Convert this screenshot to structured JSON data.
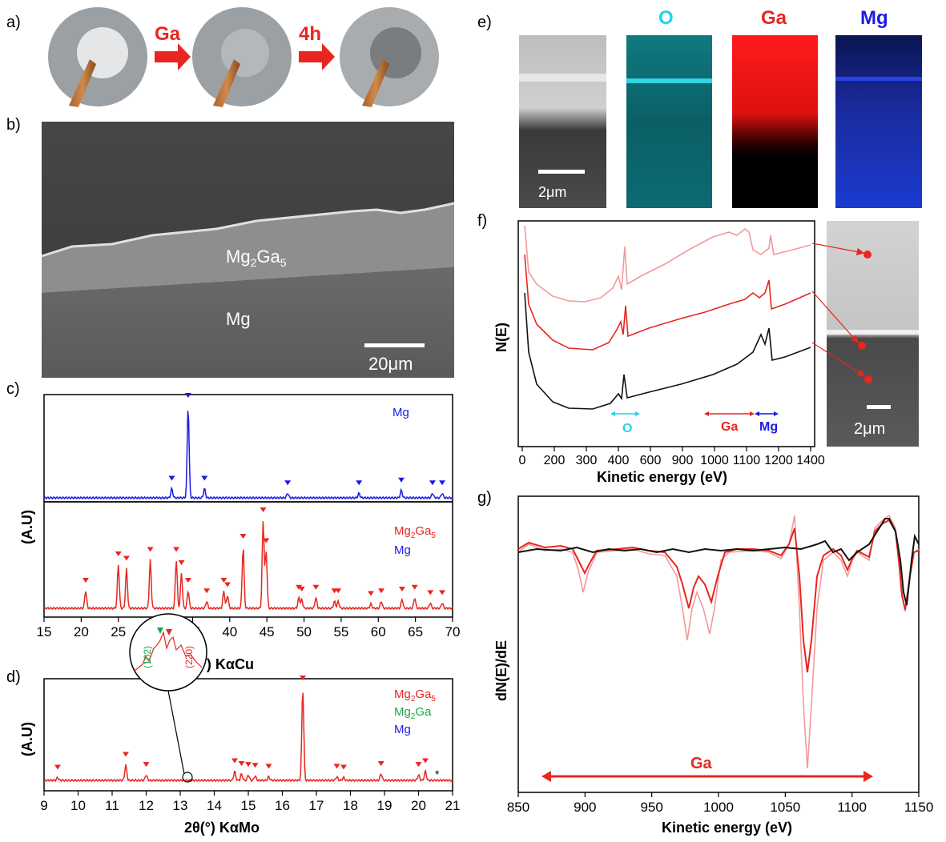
{
  "panel_labels": {
    "a": "a)",
    "b": "b)",
    "c": "c)",
    "d": "d)",
    "e": "e)",
    "f": "f)",
    "g": "g)"
  },
  "colors": {
    "red": "#e8261f",
    "pink": "#f29a9a",
    "blue": "#1a1ae6",
    "green": "#1aa84a",
    "cyan": "#22d3e6",
    "black": "#111111"
  },
  "panel_a": {
    "arrow1": "Ga",
    "arrow2": "4h"
  },
  "panel_b": {
    "layer_top": "Mg",
    "layer_top_sub": "2",
    "layer_top_mid": "Ga",
    "layer_top_sub2": "5",
    "layer_bottom": "Mg",
    "scale": "20μm"
  },
  "panel_e": {
    "scale": "2μm",
    "maps": [
      "O",
      "Ga",
      "Mg"
    ]
  },
  "panel_f": {
    "ylabel": "N(E)",
    "xlabel": "Kinetic energy (eV)",
    "ranges": [
      "O",
      "Ga",
      "Mg"
    ],
    "scale": "2μm"
  },
  "panel_g": {
    "ylabel": "dN(E)/dE",
    "xlabel": "Kinetic energy (eV)",
    "range_label": "Ga"
  },
  "panel_c": {
    "ylabel": "(A.U)",
    "xlabel": "2θ(°) KαCu",
    "legend_top": [
      "Mg"
    ],
    "legend_bottom": [
      "Mg2Ga5",
      "Mg"
    ]
  },
  "panel_d": {
    "ylabel": "(A.U)",
    "xlabel": "2θ(°) KαMo",
    "legend": [
      "Mg2Ga5",
      "Mg2Ga",
      "Mg"
    ],
    "inset": [
      "(102)",
      "(220)"
    ]
  },
  "chart_data": [
    {
      "id": "c",
      "type": "line",
      "xlabel": "2θ(°) KαCu",
      "ylabel": "(A.U)",
      "xlim": [
        15,
        70
      ],
      "x_ticks": [
        15,
        20,
        25,
        30,
        35,
        40,
        45,
        50,
        55,
        60,
        65,
        70
      ],
      "series": [
        {
          "name": "Mg",
          "peaks_x": [
            32.2,
            34.4,
            36.6,
            47.8,
            57.4,
            63.1,
            67.3,
            68.6
          ],
          "peaks_y": [
            0.1,
            1.0,
            0.1,
            0.05,
            0.05,
            0.08,
            0.05,
            0.05
          ]
        },
        {
          "name": "Mg2Ga5",
          "peaks_x": [
            20.6,
            25.0,
            26.1,
            29.3,
            32.8,
            33.5,
            34.4,
            36.9,
            39.2,
            39.7,
            41.8,
            44.5,
            44.9,
            49.3,
            49.7,
            51.6,
            54.1,
            54.6,
            59.0,
            60.4,
            63.2,
            64.9,
            67.0,
            68.6
          ],
          "peaks_y": [
            0.2,
            0.5,
            0.45,
            0.55,
            0.55,
            0.4,
            0.2,
            0.08,
            0.2,
            0.15,
            0.7,
            1.0,
            0.65,
            0.12,
            0.1,
            0.12,
            0.08,
            0.08,
            0.05,
            0.08,
            0.1,
            0.12,
            0.06,
            0.06
          ]
        }
      ]
    },
    {
      "id": "d",
      "type": "line",
      "xlabel": "2θ(°) KαMo",
      "ylabel": "(A.U)",
      "xlim": [
        9,
        21
      ],
      "x_ticks": [
        9,
        10,
        11,
        12,
        13,
        14,
        15,
        16,
        17,
        18,
        19,
        20,
        21
      ],
      "series": [
        {
          "name": "Mg2Ga5",
          "peaks_x": [
            9.4,
            11.4,
            12.0,
            14.6,
            14.8,
            15.0,
            15.2,
            15.6,
            16.6,
            17.6,
            17.8,
            18.9,
            20.0,
            20.2
          ],
          "peaks_y": [
            0.03,
            0.17,
            0.06,
            0.1,
            0.07,
            0.06,
            0.05,
            0.04,
            1.0,
            0.04,
            0.03,
            0.07,
            0.06,
            0.1
          ]
        }
      ]
    },
    {
      "id": "f",
      "type": "line",
      "xlabel": "Kinetic energy (eV)",
      "ylabel": "N(E)",
      "xlim": [
        0,
        1400
      ],
      "x_ticks": [
        0,
        100,
        200,
        300,
        400,
        500,
        600,
        700,
        800,
        900,
        1000,
        1100,
        1200,
        1300,
        1400
      ],
      "x_tick_labels": [
        "0",
        "200",
        "300",
        "400",
        "600",
        "900",
        "1000",
        "1100",
        "1200",
        "1400"
      ]
    },
    {
      "id": "g",
      "type": "line",
      "xlabel": "Kinetic energy (eV)",
      "ylabel": "dN(E)/dE",
      "xlim": [
        850,
        1150
      ],
      "x_ticks": [
        850,
        900,
        950,
        1000,
        1050,
        1100,
        1150
      ]
    }
  ]
}
